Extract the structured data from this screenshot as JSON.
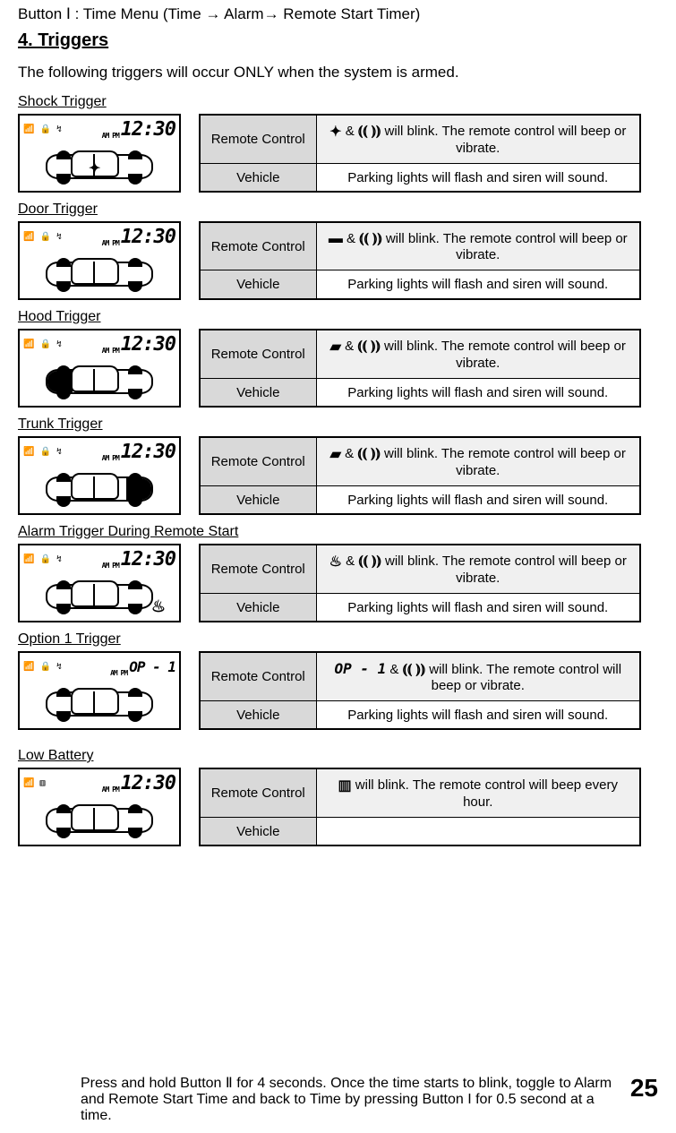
{
  "topline": "Button Ⅰ : Time Menu (Time → Alarm→ Remote Start Timer)",
  "section_heading": "4.  Triggers",
  "intro": "The following triggers will occur ONLY when the system is armed.",
  "lcd": {
    "status_icons": "📶 🔒 ↯",
    "ampm": "AM\nPM",
    "time": "12:30",
    "op1_display": "OP - 1"
  },
  "labels": {
    "remote": "Remote Control",
    "vehicle": "Vehicle"
  },
  "icons": {
    "shock": "✦",
    "door": "▬",
    "hood": "▰",
    "trunk": "▰",
    "alarm": "♨",
    "op1": "OP - 1",
    "battery": "▥",
    "siren_left": "⦅⦅",
    "siren_right": "⦆⦆"
  },
  "text_fragments": {
    "amp": "  &  ",
    "will_blink_beep_vibrate_suffix": "   will blink.  The remote control will beep or vibrate.",
    "will_blink_beep_hour_suffix": "    will blink.  The remote control will beep every hour.",
    "vehicle_desc": "Parking lights will flash and siren will sound.",
    "vehicle_empty": ""
  },
  "triggers": [
    {
      "title": "Shock Trigger",
      "icon_key": "shock",
      "lcd_variant": "shock"
    },
    {
      "title": "Door Trigger",
      "icon_key": "door",
      "lcd_variant": "door"
    },
    {
      "title": "Hood Trigger",
      "icon_key": "hood",
      "lcd_variant": "hood"
    },
    {
      "title": "Trunk Trigger",
      "icon_key": "trunk",
      "lcd_variant": "trunk"
    },
    {
      "title": "Alarm Trigger During Remote Start",
      "icon_key": "alarm",
      "lcd_variant": "alarm"
    },
    {
      "title": "Option 1 Trigger",
      "icon_key": "op1",
      "lcd_variant": "op1"
    }
  ],
  "low_battery": {
    "title": "Low Battery",
    "icon_key": "battery",
    "lcd_variant": "battery"
  },
  "footer": {
    "text": "Press and hold Button Ⅱ for 4 seconds.  Once the time starts to blink, toggle to Alarm and Remote Start Time and back to Time by pressing Button I for 0.5 second at a time.",
    "page": "25"
  },
  "colors": {
    "header_bg": "#d9d9d9",
    "remote_bg": "#f0f0f0",
    "border": "#000000",
    "page_bg": "#ffffff"
  }
}
